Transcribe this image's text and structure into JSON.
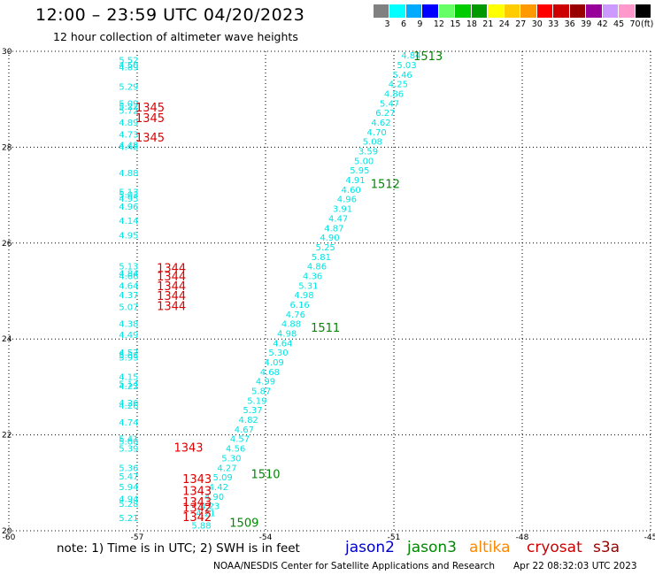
{
  "header": {
    "title": "12:00 – 23:59 UTC 04/20/2023",
    "subtitle": "12 hour collection of altimeter wave heights"
  },
  "colorbar": {
    "swatches": [
      "#808080",
      "#00ffff",
      "#00aaff",
      "#0000ff",
      "#66ff66",
      "#00cc00",
      "#009900",
      "#ffff00",
      "#ffcc00",
      "#ff9900",
      "#ff0000",
      "#cc0000",
      "#990000",
      "#990099",
      "#cc99ff",
      "#ff99cc",
      "#000000"
    ],
    "labels": [
      "3",
      "6",
      "9",
      "12",
      "15",
      "18",
      "21",
      "24",
      "27",
      "30",
      "33",
      "36",
      "39",
      "42",
      "45",
      "70",
      "(ft)"
    ]
  },
  "chart_data": {
    "type": "scatter",
    "x_ticks": [
      "-60",
      "-57",
      "-54",
      "-51",
      "-48",
      "-45"
    ],
    "y_ticks": [
      "20",
      "22",
      "24",
      "26",
      "28",
      "30"
    ],
    "xlim": [
      -60,
      -45
    ],
    "ylim": [
      20,
      30
    ],
    "grid": true,
    "series": [
      {
        "name": "cryosat",
        "color": "#00e5e5",
        "points": [
          [
            -57.2,
            29.75,
            "5.52"
          ],
          [
            -57.2,
            29.65,
            "4.50"
          ],
          [
            -57.2,
            29.6,
            "4.89"
          ],
          [
            -57.2,
            29.2,
            "5.29"
          ],
          [
            -57.2,
            28.85,
            "5.09"
          ],
          [
            -57.2,
            28.78,
            "5.22"
          ],
          [
            -57.2,
            28.7,
            "5.72"
          ],
          [
            -57.2,
            28.45,
            "4.89"
          ],
          [
            -57.2,
            28.2,
            "4.73"
          ],
          [
            -57.2,
            27.98,
            "4.48"
          ],
          [
            -57.2,
            27.94,
            "4.48"
          ],
          [
            -57.2,
            27.4,
            "4.88"
          ],
          [
            -57.2,
            27.0,
            "5.13"
          ],
          [
            -57.2,
            26.95,
            "5.03"
          ],
          [
            -57.2,
            26.86,
            "4.95"
          ],
          [
            -57.2,
            26.7,
            "4.96"
          ],
          [
            -57.2,
            26.4,
            "4.14"
          ],
          [
            -57.2,
            26.1,
            "4.95"
          ],
          [
            -57.2,
            25.45,
            "5.13"
          ],
          [
            -57.2,
            25.3,
            "4.84"
          ],
          [
            -57.2,
            25.25,
            "4.66"
          ],
          [
            -57.2,
            25.05,
            "4.64"
          ],
          [
            -57.2,
            24.85,
            "4.37"
          ],
          [
            -57.2,
            24.6,
            "5.07"
          ],
          [
            -57.2,
            24.25,
            "4.38"
          ],
          [
            -57.2,
            24.02,
            "4.49"
          ],
          [
            -57.2,
            23.65,
            "4.57"
          ],
          [
            -57.2,
            23.6,
            "5.68"
          ],
          [
            -57.2,
            23.55,
            "5.93"
          ],
          [
            -57.2,
            23.15,
            "4.15"
          ],
          [
            -57.2,
            23.0,
            "5.14"
          ],
          [
            -57.2,
            22.95,
            "4.22"
          ],
          [
            -57.2,
            22.6,
            "4.26"
          ],
          [
            -57.2,
            22.55,
            "4.26"
          ],
          [
            -57.2,
            22.2,
            "4.74"
          ],
          [
            -57.2,
            21.85,
            "5.41"
          ],
          [
            -57.2,
            21.8,
            "5.60"
          ],
          [
            -57.2,
            21.65,
            "5.39"
          ],
          [
            -57.2,
            21.25,
            "5.36"
          ],
          [
            -57.2,
            21.07,
            "5.47"
          ],
          [
            -57.2,
            20.85,
            "5.94"
          ],
          [
            -57.2,
            20.6,
            "4.94"
          ],
          [
            -57.2,
            20.5,
            "5.28"
          ],
          [
            -57.2,
            20.2,
            "5.21"
          ]
        ]
      },
      {
        "name": "jason3",
        "color": "#00e5e5",
        "points": [
          [
            -50.6,
            29.85,
            "4.84"
          ],
          [
            -50.7,
            29.65,
            "5.03"
          ],
          [
            -50.8,
            29.45,
            "5.46"
          ],
          [
            -50.9,
            29.25,
            "4.25"
          ],
          [
            -51.0,
            29.05,
            "4.86"
          ],
          [
            -51.1,
            28.85,
            "5.47"
          ],
          [
            -51.2,
            28.65,
            "6.27"
          ],
          [
            -51.3,
            28.45,
            "4.62"
          ],
          [
            -51.4,
            28.25,
            "4.70"
          ],
          [
            -51.5,
            28.05,
            "5.08"
          ],
          [
            -51.6,
            27.85,
            "3.59"
          ],
          [
            -51.7,
            27.65,
            "5.00"
          ],
          [
            -51.8,
            27.45,
            "5.95"
          ],
          [
            -51.9,
            27.25,
            "4.91"
          ],
          [
            -52.0,
            27.05,
            "4.60"
          ],
          [
            -52.1,
            26.85,
            "4.96"
          ],
          [
            -52.2,
            26.65,
            "3.91"
          ],
          [
            -52.3,
            26.45,
            "4.47"
          ],
          [
            -52.4,
            26.25,
            "4.87"
          ],
          [
            -52.5,
            26.05,
            "4.90"
          ],
          [
            -52.6,
            25.85,
            "5.25"
          ],
          [
            -52.7,
            25.65,
            "5.81"
          ],
          [
            -52.8,
            25.45,
            "4.86"
          ],
          [
            -52.9,
            25.25,
            "4.36"
          ],
          [
            -53.0,
            25.05,
            "5.31"
          ],
          [
            -53.1,
            24.85,
            "4.98"
          ],
          [
            -53.2,
            24.65,
            "6.16"
          ],
          [
            -53.3,
            24.45,
            "4.76"
          ],
          [
            -53.4,
            24.25,
            "4.88"
          ],
          [
            -53.5,
            24.05,
            "4.98"
          ],
          [
            -53.6,
            23.85,
            "4.64"
          ],
          [
            -53.7,
            23.65,
            "5.30"
          ],
          [
            -53.8,
            23.45,
            "4.09"
          ],
          [
            -53.9,
            23.25,
            "4.68"
          ],
          [
            -54.0,
            23.05,
            "4.99"
          ],
          [
            -54.1,
            22.85,
            "5.87"
          ],
          [
            -54.2,
            22.65,
            "5.19"
          ],
          [
            -54.3,
            22.45,
            "5.37"
          ],
          [
            -54.4,
            22.25,
            "4.82"
          ],
          [
            -54.5,
            22.05,
            "4.67"
          ],
          [
            -54.6,
            21.85,
            "4.57"
          ],
          [
            -54.7,
            21.65,
            "4.56"
          ],
          [
            -54.8,
            21.45,
            "5.30"
          ],
          [
            -54.9,
            21.25,
            "4.27"
          ],
          [
            -55.0,
            21.05,
            "5.09"
          ],
          [
            -55.1,
            20.85,
            "4.42"
          ],
          [
            -55.2,
            20.65,
            "4.90"
          ],
          [
            -55.3,
            20.45,
            "4.23"
          ],
          [
            -55.4,
            20.3,
            "4.21"
          ],
          [
            -55.5,
            20.05,
            "5.88"
          ]
        ]
      },
      {
        "name": "cryosat times",
        "color": "#dd0000",
        "points": [
          [
            -56.7,
            28.75,
            "1345"
          ],
          [
            -56.7,
            28.52,
            "1345"
          ],
          [
            -56.7,
            28.12,
            "1345"
          ],
          [
            -56.2,
            25.4,
            "1344"
          ],
          [
            -56.2,
            25.22,
            "1344"
          ],
          [
            -56.2,
            25.02,
            "1344"
          ],
          [
            -56.2,
            24.82,
            "1344"
          ],
          [
            -56.2,
            24.6,
            "1344"
          ],
          [
            -55.8,
            21.65,
            "1343"
          ],
          [
            -55.6,
            21.0,
            "1343"
          ],
          [
            -55.6,
            20.75,
            "1343"
          ],
          [
            -55.6,
            20.52,
            "1343"
          ],
          [
            -55.6,
            20.4,
            "1342"
          ],
          [
            -55.6,
            20.2,
            "1342"
          ]
        ]
      },
      {
        "name": "jason3 times",
        "color": "#008800",
        "points": [
          [
            -50.2,
            29.82,
            "1513"
          ],
          [
            -51.2,
            27.15,
            "1512"
          ],
          [
            -52.6,
            24.15,
            "1511"
          ],
          [
            -54.0,
            21.1,
            "1510"
          ],
          [
            -54.5,
            20.08,
            "1509"
          ]
        ]
      }
    ]
  },
  "note": "note: 1) Time is in UTC; 2) SWH is in feet",
  "legend": [
    {
      "label": "jason2",
      "color": "#0000cc"
    },
    {
      "label": "jason3",
      "color": "#008800"
    },
    {
      "label": "altika",
      "color": "#ff8800"
    },
    {
      "label": "cryosat",
      "color": "#cc0000"
    },
    {
      "label": "s3a",
      "color": "#990000"
    }
  ],
  "footer": {
    "credit": "NOAA/NESDIS Center for Satellite Applications and Research",
    "timestamp": "Apr 22 08:32:03 UTC 2023"
  }
}
